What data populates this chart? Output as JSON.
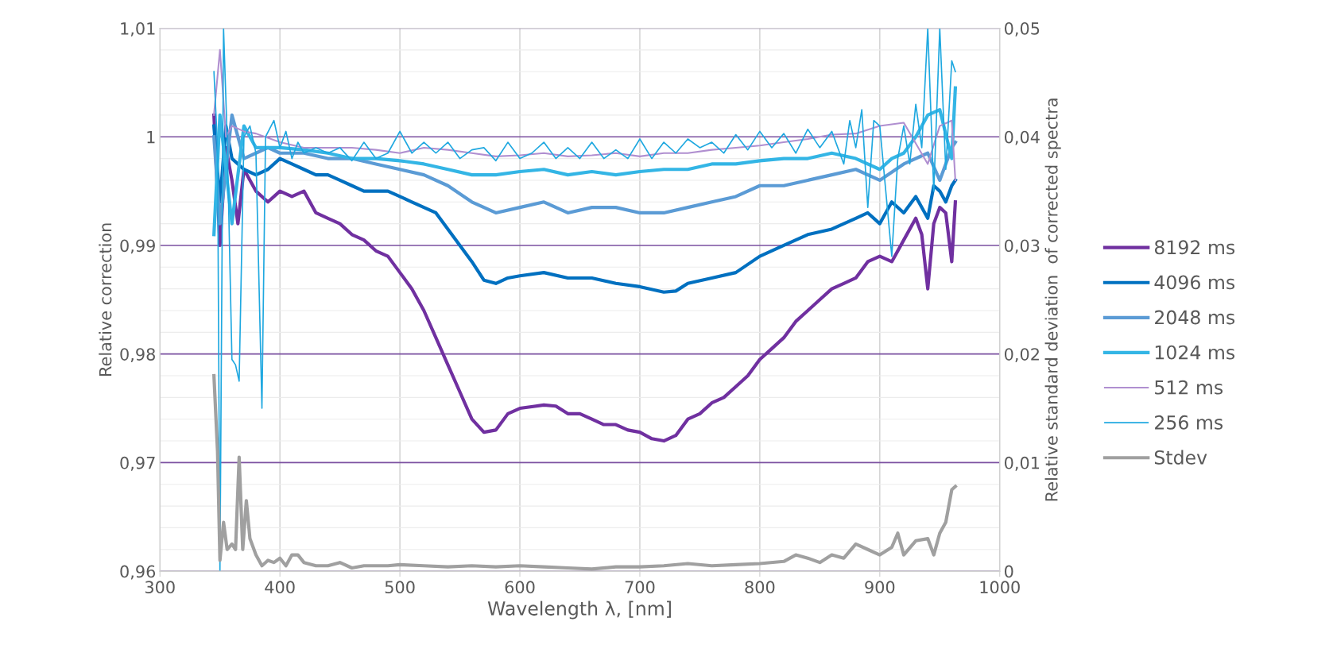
{
  "chart_data": {
    "type": "line",
    "xlabel": "Wavelength λ, [nm]",
    "ylabel": "Relative correction",
    "y2label": "Relative standard deviation  of corrected spectra",
    "xlim": [
      300,
      1000
    ],
    "xticks": [
      300,
      400,
      500,
      600,
      700,
      800,
      900,
      1000
    ],
    "ylim": [
      0.96,
      1.01
    ],
    "yticks": [
      {
        "value": 0.96,
        "label": "0,96"
      },
      {
        "value": 0.97,
        "label": "0,97"
      },
      {
        "value": 0.98,
        "label": "0,98"
      },
      {
        "value": 0.99,
        "label": "0,99"
      },
      {
        "value": 1,
        "label": "1"
      },
      {
        "value": 1.01,
        "label": "1,01"
      }
    ],
    "y2lim": [
      0,
      0.05
    ],
    "y2ticks": [
      0,
      {
        "value": 0.01,
        "label": "0,01"
      },
      {
        "value": 0.02,
        "label": "0,02"
      },
      {
        "value": 0.03,
        "label": "0,03"
      },
      {
        "value": 0.04,
        "label": "0,04"
      },
      {
        "value": 0.05,
        "label": "0,05"
      }
    ],
    "grid": true,
    "legend": "right",
    "marker": "none",
    "line_style": "solid",
    "series": [
      {
        "name": "8192 ms",
        "color": "#7030a0",
        "x": [
          345,
          350,
          355,
          360,
          365,
          370,
          380,
          390,
          400,
          410,
          420,
          430,
          440,
          450,
          460,
          470,
          480,
          490,
          500,
          510,
          520,
          530,
          540,
          550,
          560,
          570,
          580,
          590,
          600,
          620,
          630,
          640,
          650,
          660,
          670,
          680,
          690,
          700,
          710,
          720,
          730,
          740,
          750,
          760,
          770,
          780,
          790,
          800,
          810,
          820,
          830,
          840,
          850,
          860,
          870,
          880,
          890,
          900,
          910,
          920,
          930,
          935,
          940,
          945,
          950,
          955,
          960,
          963
        ],
        "values": [
          1.002,
          0.99,
          0.999,
          0.996,
          0.992,
          0.997,
          0.995,
          0.994,
          0.995,
          0.9945,
          0.995,
          0.993,
          0.9925,
          0.992,
          0.991,
          0.9905,
          0.9895,
          0.989,
          0.9875,
          0.986,
          0.984,
          0.9815,
          0.979,
          0.9765,
          0.974,
          0.9728,
          0.973,
          0.9745,
          0.975,
          0.9753,
          0.9752,
          0.9745,
          0.9745,
          0.974,
          0.9735,
          0.9735,
          0.973,
          0.9728,
          0.9722,
          0.972,
          0.9725,
          0.974,
          0.9745,
          0.9755,
          0.976,
          0.977,
          0.978,
          0.9795,
          0.9805,
          0.9815,
          0.983,
          0.984,
          0.985,
          0.986,
          0.9865,
          0.987,
          0.9885,
          0.989,
          0.9885,
          0.9905,
          0.9925,
          0.991,
          0.986,
          0.992,
          0.9935,
          0.993,
          0.9885,
          0.994
        ]
      },
      {
        "name": "4096 ms",
        "color": "#0070c0",
        "x": [
          345,
          350,
          355,
          360,
          370,
          380,
          390,
          400,
          410,
          420,
          430,
          440,
          450,
          460,
          470,
          480,
          490,
          500,
          510,
          520,
          530,
          540,
          550,
          560,
          570,
          580,
          590,
          600,
          620,
          640,
          660,
          680,
          700,
          720,
          730,
          740,
          760,
          780,
          800,
          820,
          840,
          860,
          880,
          890,
          900,
          910,
          920,
          930,
          940,
          945,
          950,
          955,
          960,
          963
        ],
        "values": [
          1.001,
          0.994,
          1.001,
          0.998,
          0.997,
          0.9965,
          0.997,
          0.998,
          0.9975,
          0.997,
          0.9965,
          0.9965,
          0.996,
          0.9955,
          0.995,
          0.995,
          0.995,
          0.9945,
          0.994,
          0.9935,
          0.993,
          0.9915,
          0.99,
          0.9885,
          0.9868,
          0.9865,
          0.987,
          0.9872,
          0.9875,
          0.987,
          0.987,
          0.9865,
          0.9862,
          0.9857,
          0.9858,
          0.9865,
          0.987,
          0.9875,
          0.989,
          0.99,
          0.991,
          0.9915,
          0.9925,
          0.993,
          0.992,
          0.994,
          0.993,
          0.9945,
          0.9925,
          0.9955,
          0.995,
          0.994,
          0.9955,
          0.996
        ]
      },
      {
        "name": "2048 ms",
        "color": "#5b9bd5",
        "x": [
          345,
          350,
          360,
          370,
          380,
          390,
          400,
          420,
          440,
          460,
          480,
          500,
          520,
          540,
          560,
          580,
          600,
          620,
          640,
          660,
          680,
          700,
          720,
          740,
          760,
          780,
          800,
          820,
          840,
          860,
          880,
          900,
          920,
          940,
          950,
          960,
          963
        ],
        "values": [
          1.0,
          0.992,
          1.002,
          0.998,
          0.9985,
          0.999,
          0.9985,
          0.9985,
          0.998,
          0.998,
          0.9975,
          0.997,
          0.9965,
          0.9955,
          0.994,
          0.993,
          0.9935,
          0.994,
          0.993,
          0.9935,
          0.9935,
          0.993,
          0.993,
          0.9935,
          0.994,
          0.9945,
          0.9955,
          0.9955,
          0.996,
          0.9965,
          0.997,
          0.996,
          0.9975,
          0.9985,
          0.996,
          0.999,
          0.9995
        ]
      },
      {
        "name": "1024 ms",
        "color": "#33b5e5",
        "x": [
          345,
          350,
          360,
          370,
          380,
          400,
          420,
          440,
          460,
          480,
          500,
          520,
          540,
          560,
          580,
          600,
          620,
          640,
          660,
          680,
          700,
          720,
          740,
          760,
          780,
          800,
          820,
          840,
          860,
          880,
          900,
          910,
          920,
          930,
          940,
          950,
          960,
          963
        ],
        "values": [
          0.991,
          1.002,
          0.992,
          1.001,
          0.999,
          0.999,
          0.9988,
          0.9985,
          0.998,
          0.998,
          0.9978,
          0.9975,
          0.997,
          0.9965,
          0.9965,
          0.9968,
          0.997,
          0.9965,
          0.9968,
          0.9965,
          0.9968,
          0.997,
          0.997,
          0.9975,
          0.9975,
          0.9978,
          0.998,
          0.998,
          0.9985,
          0.998,
          0.997,
          0.998,
          0.9985,
          1.0,
          1.002,
          1.0025,
          0.998,
          1.0045
        ]
      },
      {
        "name": "512 ms",
        "color": "#b08fd0",
        "x": [
          345,
          350,
          355,
          360,
          370,
          380,
          400,
          420,
          440,
          460,
          480,
          500,
          520,
          540,
          560,
          580,
          600,
          620,
          640,
          660,
          680,
          700,
          720,
          740,
          760,
          780,
          800,
          820,
          840,
          860,
          880,
          900,
          920,
          940,
          950,
          960,
          963
        ],
        "values": [
          1.002,
          1.008,
          1.0,
          1.001,
          1.0005,
          1.0003,
          0.9995,
          0.999,
          0.999,
          0.999,
          0.9988,
          0.9985,
          0.999,
          0.9988,
          0.9985,
          0.9982,
          0.9983,
          0.9985,
          0.9982,
          0.9983,
          0.9985,
          0.9982,
          0.9985,
          0.9985,
          0.9988,
          0.999,
          0.9992,
          0.9995,
          0.9998,
          1.0002,
          1.0003,
          1.001,
          1.0013,
          0.9975,
          1.001,
          1.0015,
          0.996
        ]
      },
      {
        "name": "256 ms",
        "color": "#1fa8e0",
        "x": [
          345,
          348,
          350,
          353,
          356,
          360,
          363,
          366,
          370,
          375,
          380,
          385,
          388,
          395,
          400,
          405,
          410,
          415,
          420,
          430,
          440,
          450,
          460,
          470,
          480,
          490,
          500,
          510,
          520,
          530,
          540,
          550,
          560,
          570,
          580,
          590,
          600,
          610,
          620,
          630,
          640,
          650,
          660,
          670,
          680,
          690,
          700,
          710,
          720,
          730,
          740,
          750,
          760,
          770,
          780,
          790,
          800,
          810,
          820,
          830,
          840,
          850,
          860,
          870,
          875,
          880,
          885,
          890,
          895,
          900,
          910,
          915,
          920,
          925,
          930,
          935,
          940,
          945,
          950,
          955,
          960,
          963
        ],
        "values": [
          1.006,
          0.999,
          0.96,
          1.01,
          1.0,
          0.9795,
          0.979,
          0.9775,
          1.0,
          1.001,
          0.9985,
          0.975,
          1.0,
          1.0015,
          0.999,
          1.0005,
          0.998,
          0.9995,
          0.9985,
          0.999,
          0.9985,
          0.999,
          0.9978,
          0.9995,
          0.998,
          0.9985,
          1.0005,
          0.9985,
          0.9995,
          0.9985,
          0.9995,
          0.998,
          0.9988,
          0.999,
          0.9978,
          0.9995,
          0.998,
          0.9985,
          0.9995,
          0.998,
          0.999,
          0.998,
          0.9995,
          0.998,
          0.9988,
          0.998,
          0.9998,
          0.998,
          0.9995,
          0.9985,
          0.9998,
          0.999,
          0.9995,
          0.9985,
          1.0002,
          0.9988,
          1.0005,
          0.999,
          1.0003,
          0.9985,
          1.0007,
          0.999,
          1.0005,
          0.9975,
          1.0015,
          0.999,
          1.0025,
          0.9935,
          1.0015,
          1.001,
          0.989,
          0.998,
          1.001,
          0.9975,
          1.003,
          0.999,
          1.01,
          0.995,
          1.01,
          0.997,
          1.007,
          1.006
        ]
      },
      {
        "name": "Stdev",
        "color": "#a0a0a0",
        "axis": "y2",
        "x": [
          345,
          348,
          350,
          353,
          356,
          360,
          363,
          366,
          369,
          372,
          375,
          380,
          385,
          390,
          395,
          400,
          405,
          410,
          415,
          420,
          430,
          440,
          450,
          460,
          470,
          480,
          490,
          500,
          520,
          540,
          560,
          580,
          600,
          620,
          640,
          660,
          680,
          700,
          720,
          740,
          760,
          780,
          800,
          820,
          830,
          840,
          850,
          860,
          870,
          880,
          890,
          900,
          910,
          915,
          920,
          930,
          940,
          945,
          950,
          955,
          960,
          963
        ],
        "values": [
          0.018,
          0.011,
          0.001,
          0.0045,
          0.002,
          0.0025,
          0.002,
          0.0105,
          0.002,
          0.0065,
          0.003,
          0.0015,
          0.0005,
          0.001,
          0.0008,
          0.0012,
          0.0005,
          0.0015,
          0.0015,
          0.0008,
          0.0005,
          0.0005,
          0.0008,
          0.0003,
          0.0005,
          0.0005,
          0.0005,
          0.0006,
          0.0005,
          0.0004,
          0.0005,
          0.0004,
          0.0005,
          0.0004,
          0.0003,
          0.0002,
          0.0004,
          0.0004,
          0.0005,
          0.0007,
          0.0005,
          0.0006,
          0.0007,
          0.0009,
          0.0015,
          0.0012,
          0.0008,
          0.0015,
          0.0012,
          0.0025,
          0.002,
          0.0015,
          0.0022,
          0.0035,
          0.0015,
          0.0028,
          0.003,
          0.0015,
          0.0035,
          0.0045,
          0.0075,
          0.0078
        ]
      }
    ]
  }
}
